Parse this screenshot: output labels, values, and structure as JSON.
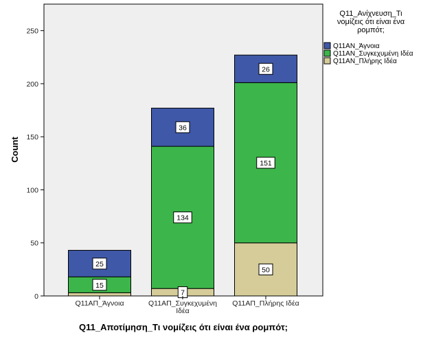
{
  "chart_data": {
    "type": "bar",
    "stacked": true,
    "categories": [
      "Q11ΑΠ_Άγνοια",
      "Q11ΑΠ_Συγκεχυμένη Ιδέα",
      "Q11ΑΠ_Πλήρης Ιδέα"
    ],
    "category_display": [
      [
        "Q11ΑΠ_Άγνοια"
      ],
      [
        "Q11ΑΠ_Συγκεχυμένη",
        "Ιδέα"
      ],
      [
        "Q11ΑΠ_Πλήρης Ιδέα"
      ]
    ],
    "series": [
      {
        "name": "Q11ΑΝ_Πλήρης Ιδέα",
        "values": [
          3,
          7,
          50
        ],
        "color": "#d5cc9a",
        "labels": [
          "",
          "7",
          "50"
        ]
      },
      {
        "name": "Q11ΑΝ_Συγκεχυμένη Ιδέα",
        "values": [
          15,
          134,
          151
        ],
        "color": "#3cb64a",
        "labels": [
          "15",
          "134",
          "151"
        ]
      },
      {
        "name": "Q11ΑΝ_Άγνοια",
        "values": [
          25,
          36,
          26
        ],
        "color": "#3f58a8",
        "labels": [
          "25",
          "36",
          "26"
        ]
      }
    ],
    "xlabel": "Q11_Αποτίμηση_Τι νομίζεις ότι είναι ένα ρομπότ;",
    "ylabel": "Count",
    "ylim": [
      0,
      275
    ],
    "yticks": [
      0,
      50,
      100,
      150,
      200,
      250
    ],
    "grid": false,
    "plot_background": "#efefef",
    "legend": {
      "title_lines": [
        "Q11_Ανίχνευση_Τι",
        "νομίζεις ότι είναι ένα",
        "ρομπότ;"
      ],
      "items": [
        "Q11ΑΝ_Άγνοια",
        "Q11ΑΝ_Συγκεχυμένη Ιδέα",
        "Q11ΑΝ_Πλήρης Ιδέα"
      ],
      "item_colors": [
        "#3f58a8",
        "#3cb64a",
        "#d5cc9a"
      ],
      "placement": "top-right"
    }
  }
}
